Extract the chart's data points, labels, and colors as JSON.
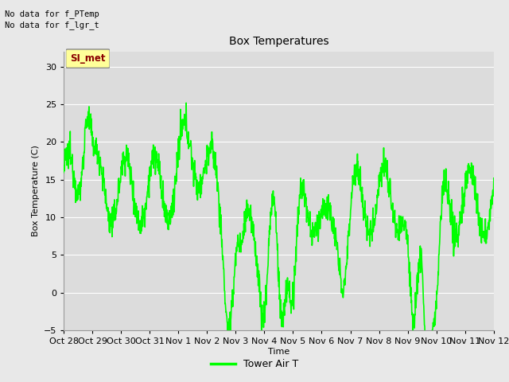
{
  "title": "Box Temperatures",
  "ylabel": "Box Temperature (C)",
  "xlabel": "Time",
  "ylim": [
    -5,
    32
  ],
  "yticks": [
    -5,
    0,
    5,
    10,
    15,
    20,
    25,
    30
  ],
  "line_color": "#00FF00",
  "line_width": 1.2,
  "bg_color": "#E8E8E8",
  "plot_bg_color": "#DCDCDC",
  "text_no_data1": "No data for f_PTemp",
  "text_no_data2": "No data for f_lgr_t",
  "legend_label": "Tower Air T",
  "SI_met_label": "SI_met",
  "SI_met_text_color": "#8B0000",
  "SI_met_bg_color": "#FFFF99",
  "xtick_labels": [
    "Oct 28",
    "Oct 29",
    "Oct 30",
    "Oct 31",
    "Nov 1",
    "Nov 2",
    "Nov 3",
    "Nov 4",
    "Nov 5",
    "Nov 6",
    "Nov 7",
    "Nov 8",
    "Nov 9",
    "Nov 10",
    "Nov 11",
    "Nov 12"
  ],
  "num_ticks": 16,
  "title_fontsize": 10,
  "label_fontsize": 8,
  "tick_fontsize": 8
}
